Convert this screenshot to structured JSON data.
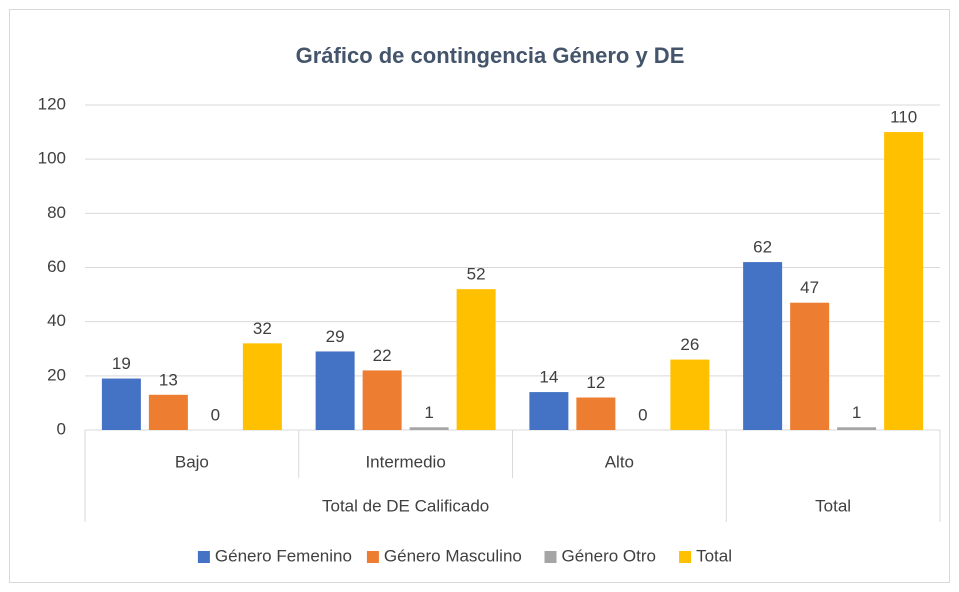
{
  "chart_data": {
    "type": "bar",
    "title": "Gráfico de contingencia Género y DE",
    "categories": [
      "Bajo",
      "Intermedio",
      "Alto",
      null
    ],
    "category_groups": [
      "Total de DE Calificado",
      "Total de DE Calificado",
      "Total de DE Calificado",
      "Total"
    ],
    "series": [
      {
        "name": "Género Femenino",
        "color": "#4472c4",
        "values": [
          19,
          29,
          14,
          62
        ]
      },
      {
        "name": "Género Masculino",
        "color": "#ed7d31",
        "values": [
          13,
          22,
          12,
          47
        ]
      },
      {
        "name": "Género Otro",
        "color": "#a5a5a5",
        "values": [
          0,
          1,
          0,
          1
        ]
      },
      {
        "name": "Total",
        "color": "#ffc000",
        "values": [
          32,
          52,
          26,
          110
        ]
      }
    ],
    "ylim": [
      0,
      120
    ],
    "yticks": [
      0,
      20,
      40,
      60,
      80,
      100,
      120
    ],
    "grid": true,
    "legend": "bottom"
  }
}
